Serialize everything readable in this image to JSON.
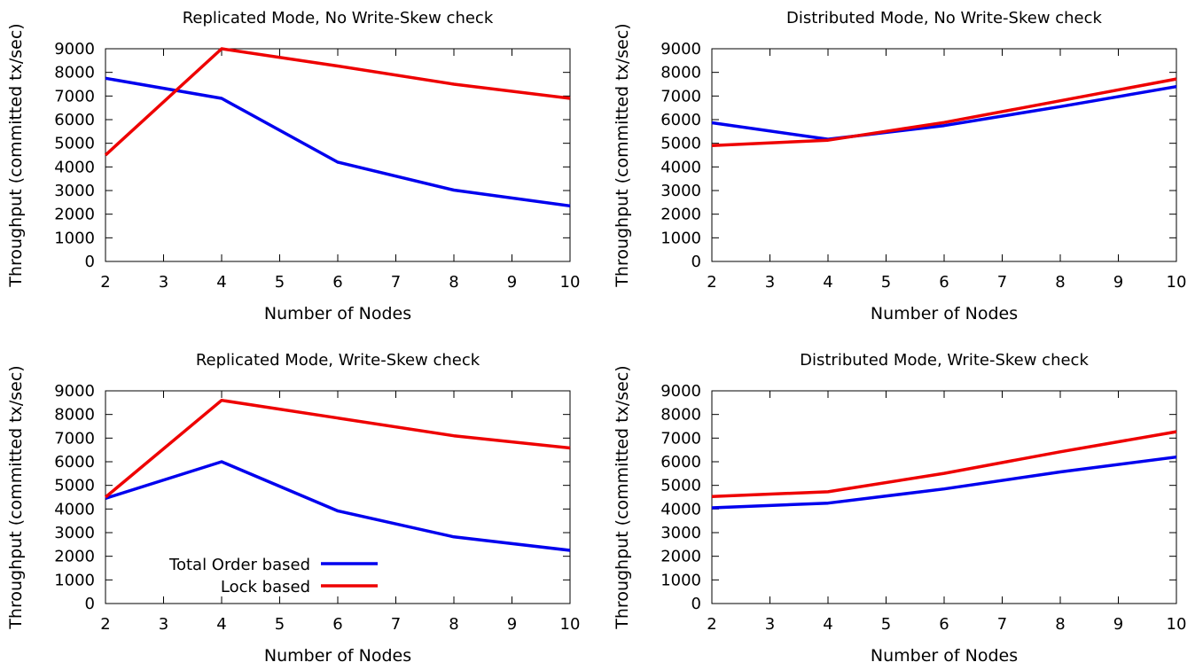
{
  "chart_data": [
    {
      "type": "line",
      "title": "Replicated Mode, No Write-Skew check",
      "xlabel": "Number of Nodes",
      "ylabel": "Throughput (committed tx/sec)",
      "xlim": [
        2,
        10
      ],
      "ylim": [
        0,
        9000
      ],
      "xticks": [
        2,
        3,
        4,
        5,
        6,
        7,
        8,
        9,
        10
      ],
      "yticks": [
        0,
        1000,
        2000,
        3000,
        4000,
        5000,
        6000,
        7000,
        8000,
        9000
      ],
      "grid": false,
      "series": [
        {
          "name": "Total Order based",
          "color": "#0000ee",
          "x": [
            2,
            4,
            6,
            8,
            10
          ],
          "y": [
            7750,
            6900,
            4200,
            3020,
            2350
          ]
        },
        {
          "name": "Lock based",
          "color": "#ee0000",
          "x": [
            2,
            4,
            6,
            8,
            10
          ],
          "y": [
            4500,
            9000,
            8270,
            7500,
            6900
          ]
        }
      ]
    },
    {
      "type": "line",
      "title": "Distributed Mode, No Write-Skew check",
      "xlabel": "Number of Nodes",
      "ylabel": "Throughput (committed tx/sec)",
      "xlim": [
        2,
        10
      ],
      "ylim": [
        0,
        9000
      ],
      "xticks": [
        2,
        3,
        4,
        5,
        6,
        7,
        8,
        9,
        10
      ],
      "yticks": [
        0,
        1000,
        2000,
        3000,
        4000,
        5000,
        6000,
        7000,
        8000,
        9000
      ],
      "grid": false,
      "series": [
        {
          "name": "Total Order based",
          "color": "#0000ee",
          "x": [
            2,
            4,
            6,
            8,
            10
          ],
          "y": [
            5870,
            5170,
            5750,
            6550,
            7400
          ]
        },
        {
          "name": "Lock based",
          "color": "#ee0000",
          "x": [
            2,
            4,
            6,
            8,
            10
          ],
          "y": [
            4900,
            5130,
            5880,
            6800,
            7720
          ]
        }
      ]
    },
    {
      "type": "line",
      "title": "Replicated Mode, Write-Skew check",
      "xlabel": "Number of Nodes",
      "ylabel": "Throughput (committed tx/sec)",
      "xlim": [
        2,
        10
      ],
      "ylim": [
        0,
        9000
      ],
      "xticks": [
        2,
        3,
        4,
        5,
        6,
        7,
        8,
        9,
        10
      ],
      "yticks": [
        0,
        1000,
        2000,
        3000,
        4000,
        5000,
        6000,
        7000,
        8000,
        9000
      ],
      "grid": false,
      "legend": {
        "position": "bottom-left",
        "entries": [
          {
            "label": "Total Order based",
            "color": "#0000ee"
          },
          {
            "label": "Lock based",
            "color": "#ee0000"
          }
        ]
      },
      "series": [
        {
          "name": "Total Order based",
          "color": "#0000ee",
          "x": [
            2,
            4,
            6,
            8,
            10
          ],
          "y": [
            4450,
            6000,
            3920,
            2820,
            2250
          ]
        },
        {
          "name": "Lock based",
          "color": "#ee0000",
          "x": [
            2,
            4,
            6,
            8,
            10
          ],
          "y": [
            4500,
            8600,
            7850,
            7100,
            6580
          ]
        }
      ]
    },
    {
      "type": "line",
      "title": "Distributed Mode, Write-Skew check",
      "xlabel": "Number of Nodes",
      "ylabel": "Throughput (committed tx/sec)",
      "xlim": [
        2,
        10
      ],
      "ylim": [
        0,
        9000
      ],
      "xticks": [
        2,
        3,
        4,
        5,
        6,
        7,
        8,
        9,
        10
      ],
      "yticks": [
        0,
        1000,
        2000,
        3000,
        4000,
        5000,
        6000,
        7000,
        8000,
        9000
      ],
      "grid": false,
      "series": [
        {
          "name": "Total Order based",
          "color": "#0000ee",
          "x": [
            2,
            4,
            6,
            8,
            10
          ],
          "y": [
            4050,
            4250,
            4850,
            5570,
            6200
          ]
        },
        {
          "name": "Lock based",
          "color": "#ee0000",
          "x": [
            2,
            4,
            6,
            8,
            10
          ],
          "y": [
            4530,
            4730,
            5510,
            6420,
            7270
          ]
        }
      ]
    }
  ]
}
